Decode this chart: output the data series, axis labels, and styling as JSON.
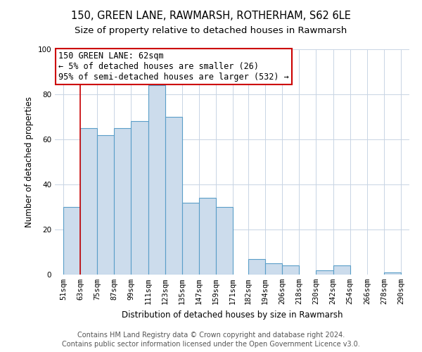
{
  "title": "150, GREEN LANE, RAWMARSH, ROTHERHAM, S62 6LE",
  "subtitle": "Size of property relative to detached houses in Rawmarsh",
  "xlabel": "Distribution of detached houses by size in Rawmarsh",
  "ylabel": "Number of detached properties",
  "bar_left_edges": [
    51,
    63,
    75,
    87,
    99,
    111,
    123,
    135,
    147,
    159,
    171,
    182,
    194,
    206,
    218,
    230,
    242,
    254,
    266,
    278
  ],
  "bar_heights": [
    30,
    65,
    62,
    65,
    68,
    84,
    70,
    32,
    34,
    30,
    0,
    7,
    5,
    4,
    0,
    2,
    4,
    0,
    0,
    1
  ],
  "bar_widths": [
    12,
    12,
    12,
    12,
    12,
    12,
    12,
    12,
    12,
    12,
    11,
    12,
    12,
    12,
    12,
    12,
    12,
    12,
    12,
    12
  ],
  "bar_color": "#ccdcec",
  "bar_edge_color": "#5a9ec8",
  "x_tick_labels": [
    "51sqm",
    "63sqm",
    "75sqm",
    "87sqm",
    "99sqm",
    "111sqm",
    "123sqm",
    "135sqm",
    "147sqm",
    "159sqm",
    "171sqm",
    "182sqm",
    "194sqm",
    "206sqm",
    "218sqm",
    "230sqm",
    "242sqm",
    "254sqm",
    "266sqm",
    "278sqm",
    "290sqm"
  ],
  "x_tick_positions": [
    51,
    63,
    75,
    87,
    99,
    111,
    123,
    135,
    147,
    159,
    171,
    182,
    194,
    206,
    218,
    230,
    242,
    254,
    266,
    278,
    290
  ],
  "ylim": [
    0,
    100
  ],
  "xlim": [
    45,
    296
  ],
  "property_line_x": 63,
  "property_line_color": "#cc0000",
  "annotation_text": "150 GREEN LANE: 62sqm\n← 5% of detached houses are smaller (26)\n95% of semi-detached houses are larger (532) →",
  "annotation_box_color": "#cc0000",
  "footer_line1": "Contains HM Land Registry data © Crown copyright and database right 2024.",
  "footer_line2": "Contains public sector information licensed under the Open Government Licence v3.0.",
  "background_color": "#ffffff",
  "grid_color": "#c8d4e4",
  "title_fontsize": 10.5,
  "subtitle_fontsize": 9.5,
  "axis_fontsize": 8.5,
  "tick_fontsize": 7.5,
  "footer_fontsize": 7.0,
  "annotation_fontsize": 8.5
}
